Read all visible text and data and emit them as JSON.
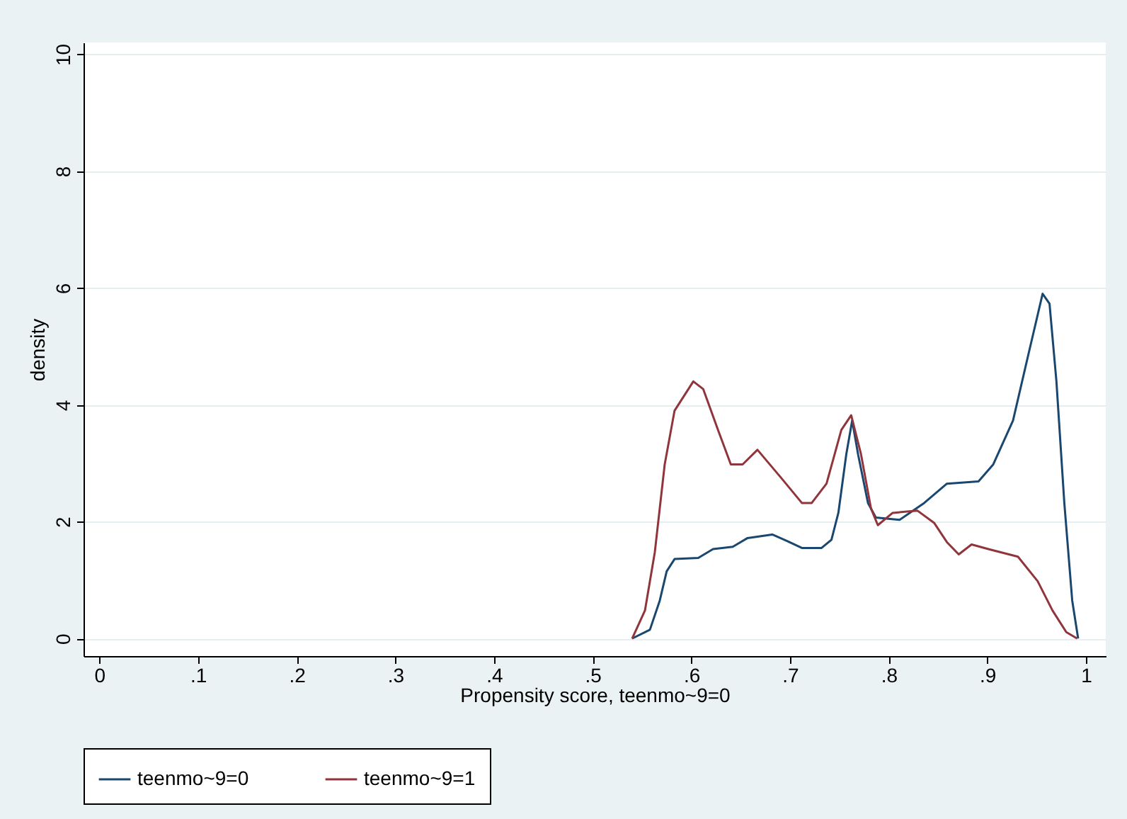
{
  "chart_data": {
    "type": "line",
    "xlabel": "Propensity score, teenmo~9=0",
    "ylabel": "density",
    "xlim": [
      -0.016,
      1.02
    ],
    "ylim": [
      -0.3,
      10.2
    ],
    "xticks": [
      0,
      {
        "value": 0.1,
        "label": ".1"
      },
      {
        "value": 0.2,
        "label": ".2"
      },
      {
        "value": 0.3,
        "label": ".3"
      },
      {
        "value": 0.4,
        "label": ".4"
      },
      {
        "value": 0.5,
        "label": ".5"
      },
      {
        "value": 0.6,
        "label": ".6"
      },
      {
        "value": 0.7,
        "label": ".7"
      },
      {
        "value": 0.8,
        "label": ".8"
      },
      {
        "value": 0.9,
        "label": ".9"
      },
      1
    ],
    "yticks": [
      0,
      2,
      4,
      6,
      8,
      10
    ],
    "grid": "y",
    "legend": "bottom",
    "marker": "none",
    "line_style": "solid",
    "series": [
      {
        "name": "teenmo~9=0",
        "color": "#1a476f",
        "x": [
          0.54,
          0.558,
          0.568,
          0.575,
          0.583,
          0.607,
          0.622,
          0.642,
          0.657,
          0.682,
          0.697,
          0.712,
          0.732,
          0.742,
          0.749,
          0.757,
          0.763,
          0.769,
          0.779,
          0.787,
          0.811,
          0.836,
          0.859,
          0.891,
          0.906,
          0.926,
          0.941,
          0.956,
          0.963,
          0.97,
          0.978,
          0.986,
          0.992
        ],
        "values": [
          0,
          0.15,
          0.65,
          1.15,
          1.36,
          1.38,
          1.53,
          1.57,
          1.72,
          1.78,
          1.67,
          1.55,
          1.55,
          1.69,
          2.15,
          3.15,
          3.73,
          3.15,
          2.32,
          2.07,
          2.03,
          2.32,
          2.65,
          2.69,
          2.98,
          3.73,
          4.82,
          5.9,
          5.73,
          4.4,
          2.32,
          0.65,
          0
        ]
      },
      {
        "name": "teenmo~9=1",
        "color": "#90353b",
        "x": [
          0.54,
          0.553,
          0.563,
          0.573,
          0.583,
          0.602,
          0.612,
          0.627,
          0.64,
          0.652,
          0.667,
          0.692,
          0.712,
          0.722,
          0.737,
          0.752,
          0.762,
          0.772,
          0.782,
          0.789,
          0.804,
          0.829,
          0.846,
          0.859,
          0.871,
          0.884,
          0.901,
          0.931,
          0.951,
          0.966,
          0.98,
          0.991
        ],
        "values": [
          0,
          0.48,
          1.48,
          2.98,
          3.9,
          4.4,
          4.27,
          3.57,
          2.98,
          2.98,
          3.23,
          2.73,
          2.32,
          2.32,
          2.65,
          3.57,
          3.82,
          3.15,
          2.23,
          1.94,
          2.15,
          2.19,
          1.98,
          1.65,
          1.44,
          1.61,
          1.53,
          1.4,
          0.98,
          0.48,
          0.11,
          0
        ]
      }
    ]
  }
}
